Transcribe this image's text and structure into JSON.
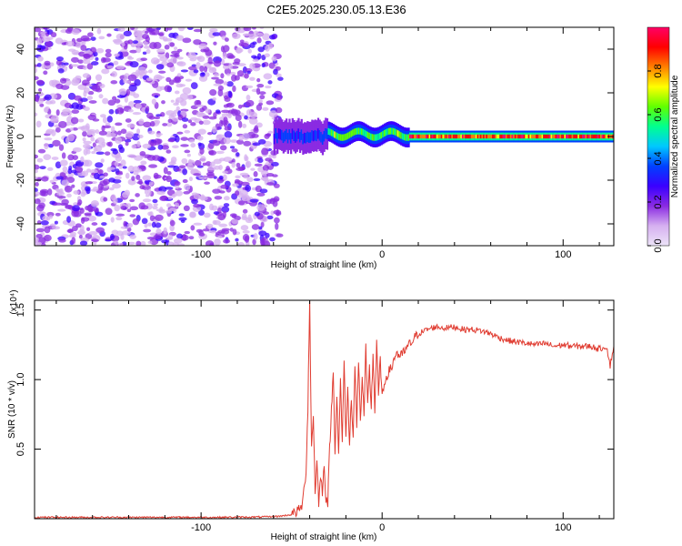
{
  "title": "C2E5.2025.230.05.13.E36",
  "colors": {
    "series": "#e03c31",
    "speckle": "#6a1bd6",
    "frame": "#000000"
  },
  "chart_data": [
    {
      "type": "heatmap",
      "xlabel": "Height of straight line (km)",
      "ylabel": "Frequency (Hz)",
      "xlim": [
        -192,
        128
      ],
      "ylim": [
        -50,
        50
      ],
      "x_ticks": [
        -100,
        0,
        100
      ],
      "y_ticks": [
        -40,
        -20,
        0,
        20,
        40
      ],
      "colorbar": {
        "label": "Normalized spectral amplitude",
        "range": [
          0,
          1
        ],
        "ticks": [
          "0.0",
          "0.2",
          "0.4",
          "0.6",
          "0.8"
        ],
        "tick_values": [
          0.0,
          0.2,
          0.4,
          0.6,
          0.8
        ],
        "colormap": [
          "#ece4f8",
          "#d6b0f0",
          "#8a2be2",
          "#3a00ff",
          "#0040ff",
          "#00c8ff",
          "#00ff90",
          "#60ff00",
          "#ffff00",
          "#ff8000",
          "#ff0000",
          "#ff0066"
        ]
      },
      "regions": [
        {
          "name": "noise",
          "x_range": [
            -192,
            -56
          ],
          "f_range": [
            -50,
            50
          ],
          "amplitude": 0.15
        },
        {
          "name": "onset",
          "x_range": [
            -60,
            -30
          ],
          "f_center": 0,
          "f_halfwidth": 4,
          "amplitude": 0.4
        },
        {
          "name": "tone",
          "x_range": [
            -30,
            15
          ],
          "f_center": 1,
          "f_halfwidth": 2.5,
          "amplitude": 0.7
        },
        {
          "name": "carrier",
          "x_range": [
            15,
            128
          ],
          "f_center": 0,
          "f_halfwidth": 1.5,
          "amplitude": 1.0
        }
      ]
    },
    {
      "type": "line",
      "xlabel": "Height of straight line (km)",
      "ylabel": "SNR (10 * v/v)",
      "y_multiplier": "(x10⁴)",
      "xlim": [
        -192,
        128
      ],
      "ylim": [
        0,
        1.57
      ],
      "x_ticks": [
        -100,
        0,
        100
      ],
      "y_ticks": [
        "0.5",
        "1.0",
        "1.5"
      ],
      "y_tick_values": [
        0.5,
        1.0,
        1.5
      ],
      "series": [
        {
          "x": [
            -192,
            -170,
            -150,
            -130,
            -110,
            -90,
            -70,
            -60,
            -55,
            -50,
            -46,
            -44,
            -42,
            -41,
            -40,
            -39,
            -38,
            -37,
            -36,
            -35,
            -34,
            -33,
            -32,
            -31,
            -30,
            -29,
            -28,
            -27,
            -26,
            -25,
            -24,
            -23,
            -22,
            -21,
            -20,
            -19,
            -18,
            -17,
            -16,
            -15,
            -14,
            -13,
            -12,
            -11,
            -10,
            -9,
            -8,
            -7,
            -6,
            -5,
            -4,
            -3,
            -2,
            -1,
            0,
            2,
            5,
            8,
            10,
            15,
            20,
            25,
            30,
            35,
            40,
            45,
            50,
            55,
            60,
            65,
            70,
            75,
            80,
            85,
            90,
            95,
            100,
            105,
            110,
            115,
            120,
            124,
            126,
            128
          ],
          "y": [
            0.01,
            0.01,
            0.01,
            0.01,
            0.01,
            0.01,
            0.012,
            0.015,
            0.02,
            0.03,
            0.06,
            0.1,
            0.35,
            0.8,
            1.58,
            0.5,
            0.75,
            0.2,
            0.4,
            0.12,
            0.3,
            0.2,
            0.38,
            0.15,
            0.12,
            0.5,
            0.78,
            1.05,
            0.5,
            0.9,
            0.45,
            1.0,
            0.55,
            1.12,
            0.6,
            0.95,
            0.52,
            0.88,
            0.6,
            1.1,
            0.65,
            1.15,
            0.7,
            1.02,
            0.75,
            1.22,
            0.8,
            1.08,
            0.8,
            1.18,
            0.78,
            1.28,
            0.88,
            1.15,
            0.86,
            1.02,
            1.08,
            1.2,
            1.16,
            1.25,
            1.33,
            1.36,
            1.38,
            1.37,
            1.38,
            1.36,
            1.36,
            1.35,
            1.33,
            1.3,
            1.28,
            1.27,
            1.26,
            1.25,
            1.26,
            1.24,
            1.25,
            1.24,
            1.24,
            1.24,
            1.22,
            1.24,
            1.1,
            1.24
          ]
        }
      ]
    }
  ]
}
